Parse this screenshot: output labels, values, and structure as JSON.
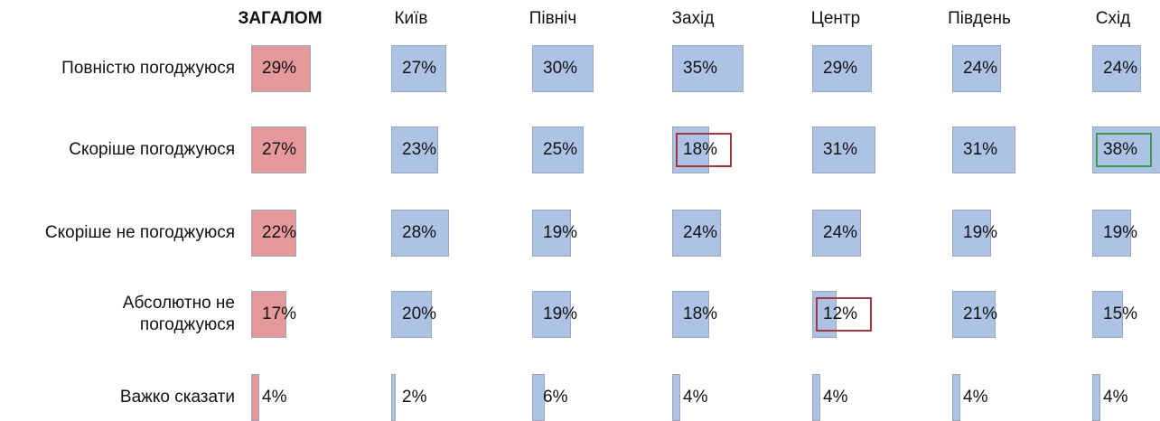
{
  "chart_data": {
    "type": "bar",
    "categories": [
      "Повністю погоджуюся",
      "Скоріше погоджуюся",
      "Скоріше не погоджуюся",
      "Абсолютно не\nпогоджуюся",
      "Важко сказати"
    ],
    "series": [
      {
        "name": "ЗАГАЛОМ",
        "color": "#e6999b",
        "values": [
          29,
          27,
          22,
          17,
          4
        ],
        "value_labels": [
          "29%",
          "27%",
          "22%",
          "17%",
          "4%"
        ],
        "outline": [
          null,
          null,
          null,
          null,
          null
        ]
      },
      {
        "name": "Київ",
        "color": "#adc3e5",
        "values": [
          27,
          23,
          28,
          20,
          2
        ],
        "value_labels": [
          "27%",
          "23%",
          "28%",
          "20%",
          "2%"
        ],
        "outline": [
          null,
          null,
          null,
          null,
          null
        ]
      },
      {
        "name": "Північ",
        "color": "#adc3e5",
        "values": [
          30,
          25,
          19,
          19,
          6
        ],
        "value_labels": [
          "30%",
          "25%",
          "19%",
          "19%",
          "6%"
        ],
        "outline": [
          null,
          null,
          null,
          null,
          null
        ]
      },
      {
        "name": "Захід",
        "color": "#adc3e5",
        "values": [
          35,
          18,
          24,
          18,
          4
        ],
        "value_labels": [
          "35%",
          "18%",
          "24%",
          "18%",
          "4%"
        ],
        "outline": [
          null,
          "#a3363c",
          null,
          null,
          null
        ]
      },
      {
        "name": "Центр",
        "color": "#adc3e5",
        "values": [
          29,
          31,
          24,
          12,
          4
        ],
        "value_labels": [
          "29%",
          "31%",
          "24%",
          "12%",
          "4%"
        ],
        "outline": [
          null,
          null,
          null,
          "#a3363c",
          null
        ]
      },
      {
        "name": "Південь",
        "color": "#adc3e5",
        "values": [
          24,
          31,
          19,
          21,
          4
        ],
        "value_labels": [
          "24%",
          "31%",
          "19%",
          "21%",
          "4%"
        ],
        "outline": [
          null,
          null,
          null,
          null,
          null
        ]
      },
      {
        "name": "Схід",
        "color": "#adc3e5",
        "values": [
          24,
          38,
          19,
          15,
          4
        ],
        "value_labels": [
          "24%",
          "38%",
          "19%",
          "15%",
          "4%"
        ],
        "outline": [
          null,
          "#3f9a4f",
          null,
          null,
          null
        ]
      }
    ]
  }
}
